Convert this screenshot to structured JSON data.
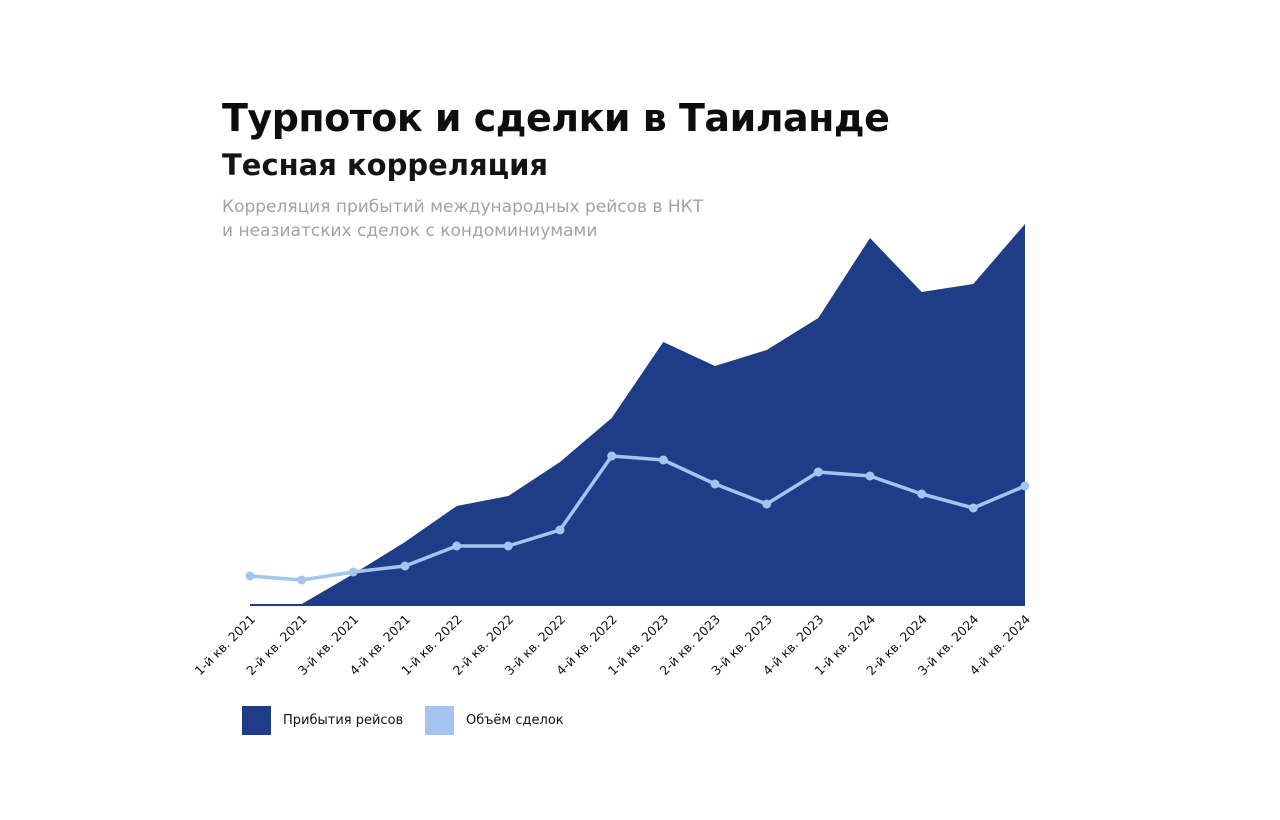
{
  "title": "Турпоток и сделки в Таиланде",
  "subtitle": "Тесная корреляция",
  "description": {
    "line1": "Корреляция прибытий международных рейсов в НКТ",
    "line2": "и неазиатских сделок с кондоминиумами"
  },
  "colors": {
    "flights": "#1f3c88",
    "deals": "#a6c4f0"
  },
  "chart_data": {
    "type": "area",
    "categories": [
      "1-й кв. 2021",
      "2-й кв. 2021",
      "3-й кв. 2021",
      "4-й кв. 2021",
      "1-й кв. 2022",
      "2-й кв. 2022",
      "3-й кв. 2022",
      "4-й кв. 2022",
      "1-й кв. 2023",
      "2-й кв. 2023",
      "3-й кв. 2023",
      "4-й кв. 2023",
      "1-й кв. 2024",
      "2-й кв. 2024",
      "3-й кв. 2024",
      "4-й кв. 2024"
    ],
    "series": [
      {
        "name": "Прибытия рейсов",
        "type": "area",
        "values": [
          1,
          1,
          16,
          32,
          50,
          55,
          72,
          94,
          132,
          120,
          128,
          144,
          184,
          157,
          161,
          191
        ]
      },
      {
        "name": "Объём сделок",
        "type": "line",
        "values": [
          15,
          13,
          17,
          20,
          30,
          30,
          38,
          75,
          73,
          61,
          51,
          67,
          65,
          56,
          49,
          60
        ]
      }
    ],
    "ylim": [
      0,
      200
    ],
    "grid": false,
    "legend": "bottom-left"
  }
}
